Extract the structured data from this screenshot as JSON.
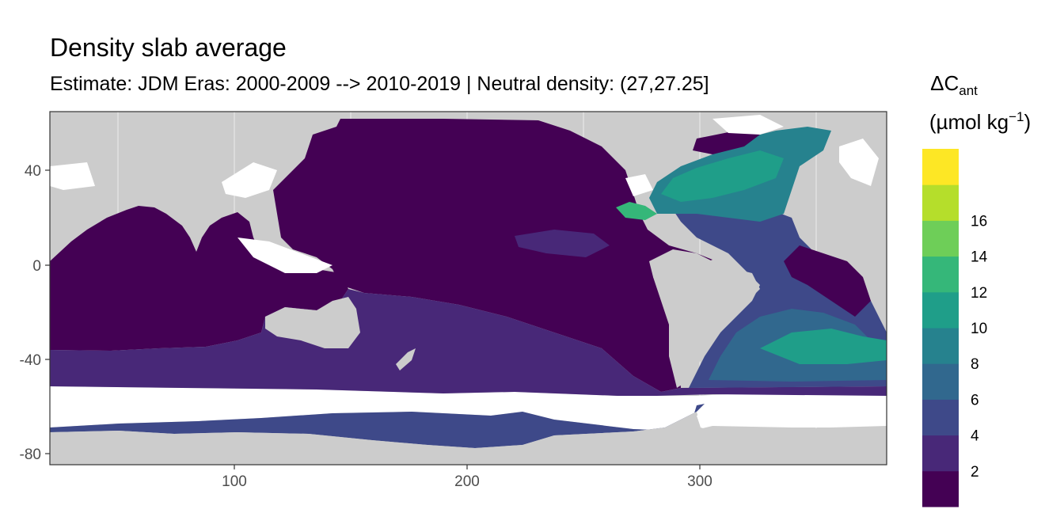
{
  "title": "Density slab average",
  "subtitle": "Estimate: JDM Eras: 2000-2009 --> 2010-2019 | Neutral density: (27,27.25]",
  "axes": {
    "x_ticks": [
      "100",
      "200",
      "300"
    ],
    "y_ticks": [
      "40",
      "0",
      "-40",
      "-80"
    ],
    "x_range": [
      20,
      380
    ],
    "y_range": [
      -85,
      65
    ]
  },
  "legend": {
    "title_main": "ΔC",
    "title_sub": "ant",
    "unit_prefix": "(µmol kg",
    "unit_exp": "−1",
    "unit_suffix": ")",
    "labels": [
      "2",
      "4",
      "6",
      "8",
      "10",
      "12",
      "14",
      "16"
    ],
    "colors": [
      "#440154",
      "#482878",
      "#3e4989",
      "#31688e",
      "#26828e",
      "#1f9e89",
      "#35b779",
      "#6ece58",
      "#b5de2b",
      "#fde725"
    ]
  },
  "colors": {
    "land": "#cccccc",
    "no_data": "#ffffff",
    "panel_border": "#333333"
  }
}
